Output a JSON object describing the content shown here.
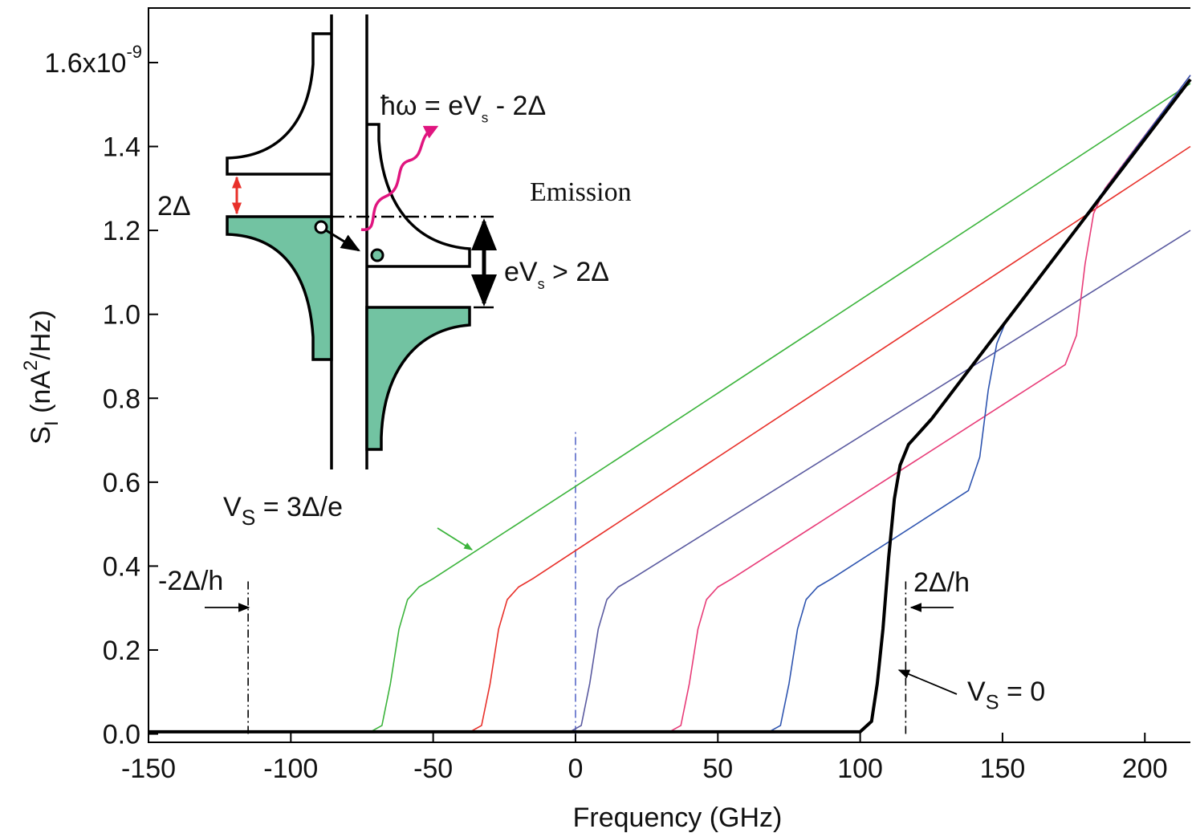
{
  "chart_data": {
    "type": "line",
    "x_label": "Frequency (GHz)",
    "y_label": {
      "main": "S",
      "sub": "I",
      "open": " (nA",
      "sup": "2",
      "close": "/Hz)"
    },
    "xlim": [
      -150,
      216
    ],
    "ylim": [
      -0.02,
      1.73
    ],
    "xticks": [
      -150,
      -100,
      -50,
      0,
      50,
      100,
      150,
      200
    ],
    "yticks": [
      {
        "value": 0,
        "label": "0.0"
      },
      0.2,
      0.4,
      0.6,
      0.8,
      {
        "value": 1.0,
        "label": "1.0"
      },
      1.2,
      1.4,
      {
        "value": 1.6,
        "label": "1.6x10",
        "exponent": "-9"
      }
    ],
    "series": [
      {
        "color": "#3cb43c",
        "width": 1.6,
        "x": [
          -150,
          -72,
          -68,
          -65,
          -62,
          -59,
          -55,
          -50,
          0,
          216
        ],
        "values": [
          0.005,
          0.005,
          0.02,
          0.12,
          0.25,
          0.32,
          0.35,
          0.37,
          0.59,
          1.55
        ]
      },
      {
        "color": "#e8302a",
        "width": 1.6,
        "x": [
          -150,
          -37,
          -33,
          -30,
          -27,
          -24,
          -20,
          -15,
          216
        ],
        "values": [
          0.005,
          0.005,
          0.02,
          0.12,
          0.25,
          0.32,
          0.35,
          0.37,
          1.4
        ]
      },
      {
        "color": "#5a5aa0",
        "width": 1.6,
        "x": [
          -150,
          -2,
          2,
          5,
          8,
          11,
          15,
          20,
          216
        ],
        "values": [
          0.005,
          0.005,
          0.02,
          0.12,
          0.25,
          0.32,
          0.35,
          0.37,
          1.2
        ]
      },
      {
        "color": "#e83c78",
        "width": 1.6,
        "x": [
          -150,
          33,
          37,
          40,
          43,
          46,
          50,
          55,
          172,
          176,
          179,
          182,
          186,
          216
        ],
        "values": [
          0.005,
          0.005,
          0.02,
          0.12,
          0.25,
          0.32,
          0.35,
          0.37,
          0.88,
          0.95,
          1.12,
          1.24,
          1.3,
          1.57
        ]
      },
      {
        "color": "#2f55b0",
        "width": 1.6,
        "x": [
          -150,
          68,
          72,
          75,
          78,
          81,
          85,
          90,
          138,
          142,
          145,
          148,
          151,
          216
        ],
        "values": [
          0.005,
          0.005,
          0.02,
          0.12,
          0.25,
          0.32,
          0.35,
          0.37,
          0.58,
          0.66,
          0.82,
          0.93,
          0.98,
          1.57
        ]
      },
      {
        "color": "#000000",
        "width": 4,
        "x": [
          -150,
          100,
          104,
          106,
          108,
          110,
          112,
          114,
          117,
          121,
          125,
          216
        ],
        "values": [
          0.005,
          0.005,
          0.03,
          0.12,
          0.25,
          0.42,
          0.56,
          0.64,
          0.69,
          0.72,
          0.75,
          1.56
        ]
      }
    ],
    "vlines": [
      {
        "x": -115,
        "ymax": 0.37,
        "color": "#000000"
      },
      {
        "x": 0,
        "ymax": 0.72,
        "color": "#5a6ac8"
      },
      {
        "x": 116,
        "ymax": 0.37,
        "color": "#000000"
      }
    ],
    "annotations": [
      {
        "text": "-2Δ/h"
      },
      {
        "text": "2Δ/h"
      },
      {
        "text": "V",
        "sub": "S",
        "rest": " = 3Δ/e",
        "color": "#3cb43c"
      },
      {
        "text": "V",
        "sub": "S",
        "rest": " = 0"
      },
      {
        "text": "Emission"
      },
      {
        "text": "2Δ",
        "color": "#e8302a"
      },
      {
        "text": "ħω = eV",
        "sub": "s",
        "rest": " - 2Δ",
        "color": "#e0157f"
      },
      {
        "text": "eV",
        "sub": "s",
        "rest": " > 2Δ"
      }
    ]
  }
}
